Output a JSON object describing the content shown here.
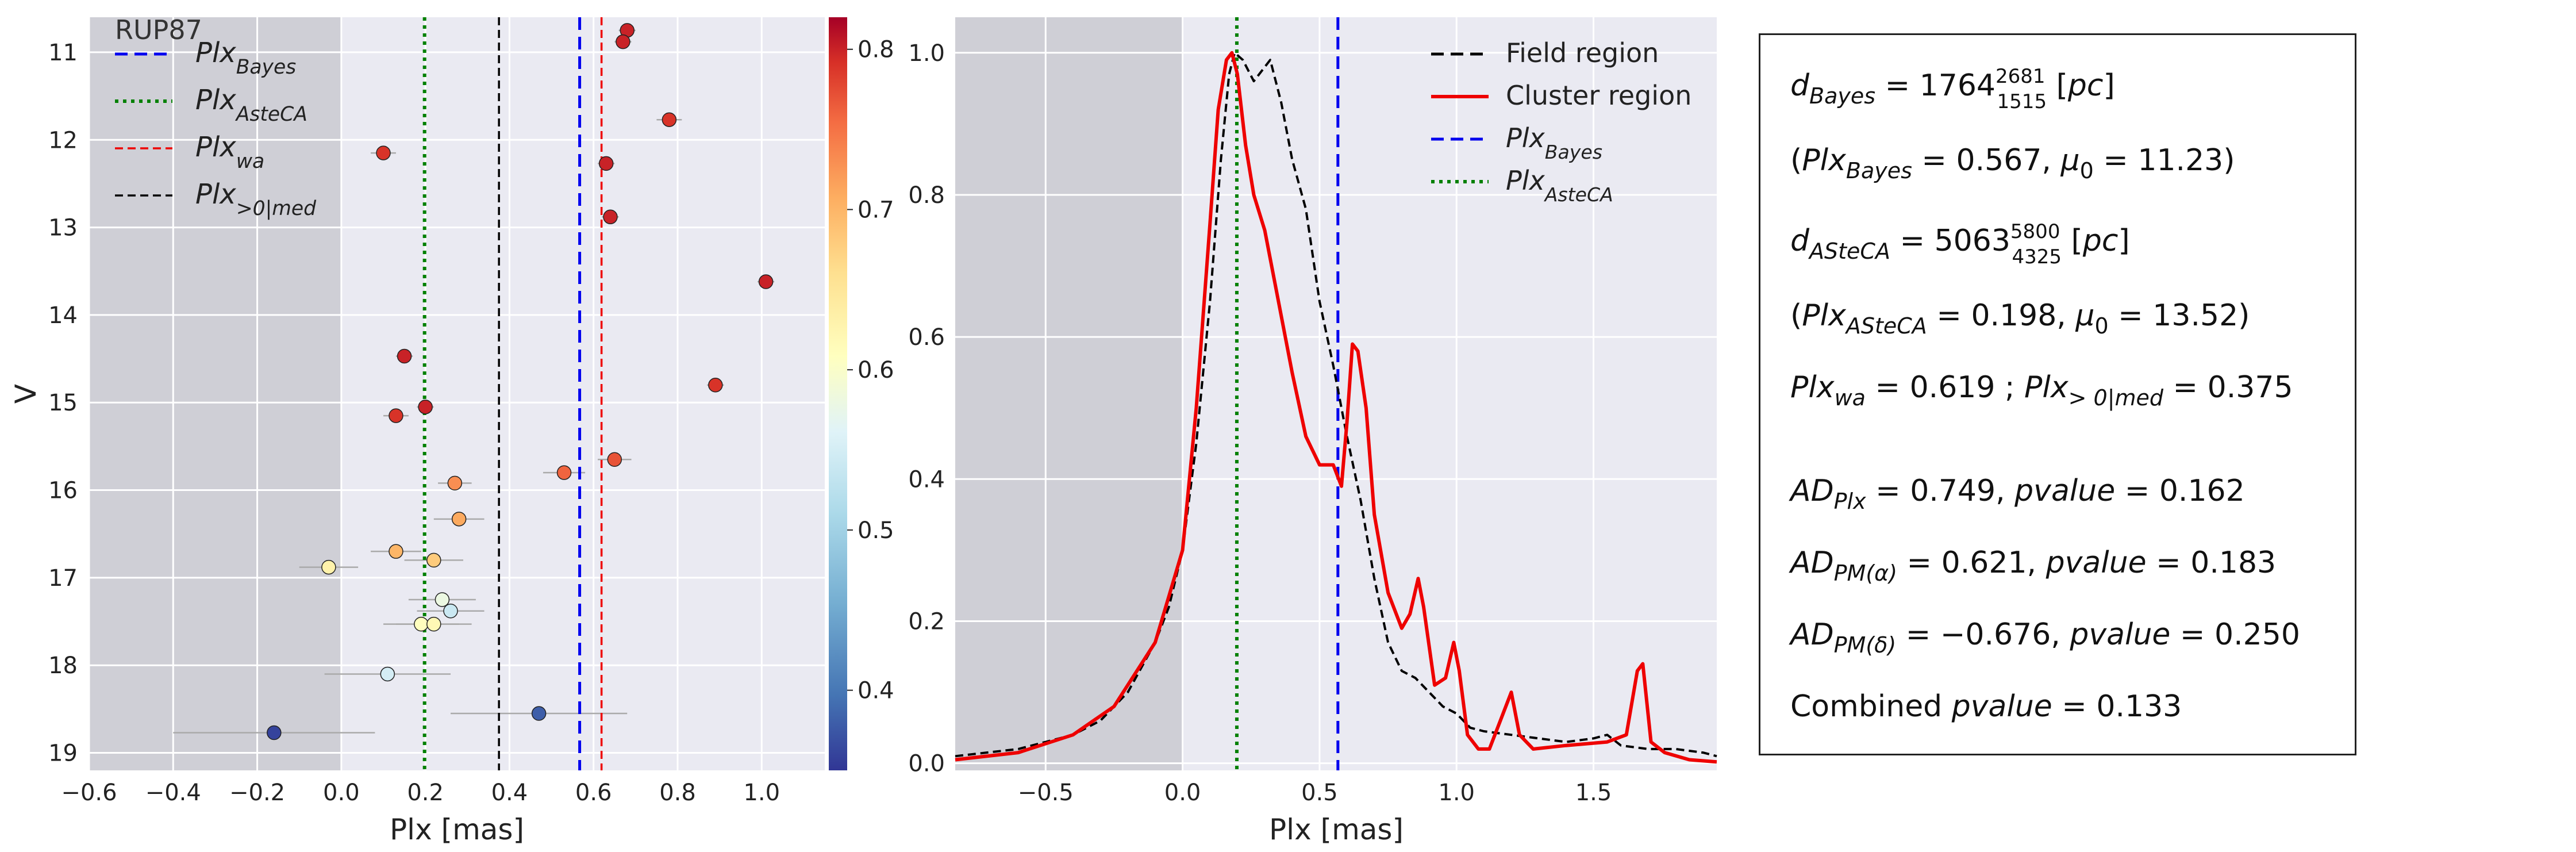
{
  "chart_data": [
    {
      "type": "scatter",
      "panel": "left",
      "cluster_label": "RUP87",
      "xlabel": "Plx [mas]",
      "ylabel": "V",
      "xlim": [
        -0.6,
        1.15
      ],
      "ylim": [
        19.2,
        10.6
      ],
      "y_inverted": true,
      "xticks": [
        "−0.6",
        "−0.4",
        "−0.2",
        "0.0",
        "0.2",
        "0.4",
        "0.6",
        "0.8",
        "1.0"
      ],
      "yticks": [
        "11",
        "12",
        "13",
        "14",
        "15",
        "16",
        "17",
        "18",
        "19"
      ],
      "grid": true,
      "shaded_region": [
        -0.6,
        0.0
      ],
      "colorbar": {
        "min": 0.35,
        "max": 0.82,
        "ticks": [
          "0.4",
          "0.5",
          "0.6",
          "0.7",
          "0.8"
        ],
        "colormap": "RdYlBu_r"
      },
      "vlines": [
        {
          "name": "Plx_Bayes",
          "x": 0.567,
          "color": "#0000ee",
          "style": "dashed"
        },
        {
          "name": "Plx_AsteCA",
          "x": 0.198,
          "color": "#008000",
          "style": "dotted"
        },
        {
          "name": "Plx_wa",
          "x": 0.619,
          "color": "#ee0000",
          "style": "dashed-thin"
        },
        {
          "name": "Plx_>0|med",
          "x": 0.375,
          "color": "#000000",
          "style": "dashed-thin"
        }
      ],
      "legend": [
        {
          "base": "Plx",
          "sub": "Bayes",
          "color": "#0000ee",
          "style": "dashed"
        },
        {
          "base": "Plx",
          "sub": "AsteCA",
          "color": "#008000",
          "style": "dotted"
        },
        {
          "base": "Plx",
          "sub": "wa",
          "color": "#ee0000",
          "style": "dashed-thin"
        },
        {
          "base": "Plx",
          "sub": ">0|med",
          "color": "#000000",
          "style": "dashed-thin"
        }
      ],
      "legend_position": "top-left",
      "points": [
        {
          "x": 0.68,
          "y": 10.75,
          "xerr": 0.02,
          "p": 0.8
        },
        {
          "x": 0.67,
          "y": 10.88,
          "xerr": 0.02,
          "p": 0.8
        },
        {
          "x": 0.78,
          "y": 11.77,
          "xerr": 0.03,
          "p": 0.79
        },
        {
          "x": 0.1,
          "y": 12.15,
          "xerr": 0.03,
          "p": 0.79
        },
        {
          "x": 0.63,
          "y": 12.27,
          "xerr": 0.02,
          "p": 0.8
        },
        {
          "x": 0.64,
          "y": 12.88,
          "xerr": 0.02,
          "p": 0.8
        },
        {
          "x": 1.01,
          "y": 13.62,
          "xerr": 0.02,
          "p": 0.8
        },
        {
          "x": 0.15,
          "y": 14.47,
          "xerr": 0.02,
          "p": 0.8
        },
        {
          "x": 0.89,
          "y": 14.8,
          "xerr": 0.02,
          "p": 0.79
        },
        {
          "x": 0.2,
          "y": 15.05,
          "xerr": 0.02,
          "p": 0.8
        },
        {
          "x": 0.13,
          "y": 15.15,
          "xerr": 0.03,
          "p": 0.79
        },
        {
          "x": 0.65,
          "y": 15.65,
          "xerr": 0.04,
          "p": 0.77
        },
        {
          "x": 0.53,
          "y": 15.8,
          "xerr": 0.05,
          "p": 0.76
        },
        {
          "x": 0.27,
          "y": 15.92,
          "xerr": 0.04,
          "p": 0.73
        },
        {
          "x": 0.28,
          "y": 16.33,
          "xerr": 0.06,
          "p": 0.71
        },
        {
          "x": 0.13,
          "y": 16.7,
          "xerr": 0.06,
          "p": 0.7
        },
        {
          "x": 0.22,
          "y": 16.8,
          "xerr": 0.07,
          "p": 0.68
        },
        {
          "x": -0.03,
          "y": 16.88,
          "xerr": 0.07,
          "p": 0.63
        },
        {
          "x": 0.24,
          "y": 17.25,
          "xerr": 0.08,
          "p": 0.58
        },
        {
          "x": 0.26,
          "y": 17.38,
          "xerr": 0.08,
          "p": 0.54
        },
        {
          "x": 0.19,
          "y": 17.53,
          "xerr": 0.09,
          "p": 0.61
        },
        {
          "x": 0.22,
          "y": 17.53,
          "xerr": 0.09,
          "p": 0.62
        },
        {
          "x": 0.11,
          "y": 18.1,
          "xerr": 0.15,
          "p": 0.55
        },
        {
          "x": 0.47,
          "y": 18.55,
          "xerr": 0.21,
          "p": 0.38
        },
        {
          "x": -0.16,
          "y": 18.77,
          "xerr": 0.24,
          "p": 0.36
        }
      ]
    },
    {
      "type": "line",
      "panel": "middle",
      "xlabel": "Plx [mas]",
      "xlim": [
        -0.83,
        1.95
      ],
      "ylim": [
        -0.01,
        1.05
      ],
      "xticks": [
        "−0.5",
        "0.0",
        "0.5",
        "1.0",
        "1.5"
      ],
      "yticks": [
        "0.0",
        "0.2",
        "0.4",
        "0.6",
        "0.8",
        "1.0"
      ],
      "grid": true,
      "shaded_region": [
        -0.83,
        0.0
      ],
      "legend_position": "top-right",
      "series": [
        {
          "name": "Field region",
          "color": "#000000",
          "style": "dashed",
          "points": [
            [
              -0.83,
              0.01
            ],
            [
              -0.6,
              0.02
            ],
            [
              -0.4,
              0.04
            ],
            [
              -0.3,
              0.06
            ],
            [
              -0.2,
              0.1
            ],
            [
              -0.1,
              0.17
            ],
            [
              -0.05,
              0.22
            ],
            [
              0.0,
              0.3
            ],
            [
              0.05,
              0.45
            ],
            [
              0.1,
              0.65
            ],
            [
              0.14,
              0.85
            ],
            [
              0.17,
              0.97
            ],
            [
              0.19,
              1.0
            ],
            [
              0.22,
              0.99
            ],
            [
              0.26,
              0.96
            ],
            [
              0.29,
              0.975
            ],
            [
              0.32,
              0.99
            ],
            [
              0.36,
              0.93
            ],
            [
              0.4,
              0.85
            ],
            [
              0.45,
              0.78
            ],
            [
              0.5,
              0.65
            ],
            [
              0.55,
              0.56
            ],
            [
              0.6,
              0.46
            ],
            [
              0.65,
              0.37
            ],
            [
              0.7,
              0.26
            ],
            [
              0.75,
              0.17
            ],
            [
              0.8,
              0.13
            ],
            [
              0.85,
              0.12
            ],
            [
              0.9,
              0.1
            ],
            [
              0.95,
              0.08
            ],
            [
              1.0,
              0.07
            ],
            [
              1.05,
              0.05
            ],
            [
              1.1,
              0.045
            ],
            [
              1.2,
              0.04
            ],
            [
              1.3,
              0.035
            ],
            [
              1.4,
              0.03
            ],
            [
              1.5,
              0.035
            ],
            [
              1.55,
              0.04
            ],
            [
              1.6,
              0.025
            ],
            [
              1.7,
              0.02
            ],
            [
              1.8,
              0.02
            ],
            [
              1.9,
              0.015
            ],
            [
              1.95,
              0.01
            ]
          ]
        },
        {
          "name": "Cluster region",
          "color": "#ee0000",
          "style": "solid",
          "points": [
            [
              -0.83,
              0.005
            ],
            [
              -0.6,
              0.015
            ],
            [
              -0.4,
              0.04
            ],
            [
              -0.25,
              0.08
            ],
            [
              -0.1,
              0.17
            ],
            [
              0.0,
              0.3
            ],
            [
              0.05,
              0.5
            ],
            [
              0.1,
              0.76
            ],
            [
              0.13,
              0.92
            ],
            [
              0.16,
              0.99
            ],
            [
              0.18,
              1.0
            ],
            [
              0.2,
              0.97
            ],
            [
              0.23,
              0.87
            ],
            [
              0.26,
              0.8
            ],
            [
              0.3,
              0.75
            ],
            [
              0.35,
              0.65
            ],
            [
              0.4,
              0.55
            ],
            [
              0.45,
              0.46
            ],
            [
              0.5,
              0.42
            ],
            [
              0.55,
              0.42
            ],
            [
              0.58,
              0.39
            ],
            [
              0.6,
              0.48
            ],
            [
              0.62,
              0.59
            ],
            [
              0.64,
              0.58
            ],
            [
              0.67,
              0.5
            ],
            [
              0.7,
              0.35
            ],
            [
              0.75,
              0.24
            ],
            [
              0.8,
              0.19
            ],
            [
              0.83,
              0.21
            ],
            [
              0.86,
              0.26
            ],
            [
              0.88,
              0.22
            ],
            [
              0.92,
              0.11
            ],
            [
              0.96,
              0.12
            ],
            [
              0.99,
              0.17
            ],
            [
              1.01,
              0.13
            ],
            [
              1.04,
              0.04
            ],
            [
              1.08,
              0.02
            ],
            [
              1.12,
              0.02
            ],
            [
              1.16,
              0.06
            ],
            [
              1.2,
              0.1
            ],
            [
              1.23,
              0.04
            ],
            [
              1.28,
              0.02
            ],
            [
              1.4,
              0.025
            ],
            [
              1.55,
              0.03
            ],
            [
              1.62,
              0.04
            ],
            [
              1.66,
              0.13
            ],
            [
              1.68,
              0.14
            ],
            [
              1.71,
              0.03
            ],
            [
              1.76,
              0.015
            ],
            [
              1.85,
              0.005
            ],
            [
              1.95,
              0.002
            ]
          ]
        }
      ],
      "vlines": [
        {
          "name": "Plx_Bayes",
          "x": 0.567,
          "color": "#0000ee",
          "style": "dashed"
        },
        {
          "name": "Plx_AsteCA",
          "x": 0.198,
          "color": "#008000",
          "style": "dotted"
        }
      ],
      "legend": [
        {
          "text": "Field region",
          "color": "#000000",
          "style": "dashed"
        },
        {
          "text": "Cluster region",
          "color": "#ee0000",
          "style": "solid"
        },
        {
          "base": "Plx",
          "sub": "Bayes",
          "color": "#0000ee",
          "style": "dashed"
        },
        {
          "base": "Plx",
          "sub": "AsteCA",
          "color": "#008000",
          "style": "dotted"
        }
      ]
    }
  ],
  "stats_box": {
    "lines": [
      {
        "parts": [
          {
            "t": "d",
            "i": true
          },
          {
            "t": "Bayes",
            "i": true,
            "sub": true
          },
          {
            "t": " = 1764"
          },
          {
            "t": "2681",
            "sup": true
          },
          {
            "t": "1515",
            "subnum": true
          },
          {
            "t": " ["
          },
          {
            "t": "pc",
            "i": true
          },
          {
            "t": "]"
          }
        ]
      },
      {
        "parts": [
          {
            "t": "("
          },
          {
            "t": "Plx",
            "i": true
          },
          {
            "t": "Bayes",
            "i": true,
            "sub": true
          },
          {
            "t": " = 0.567,  "
          },
          {
            "t": "μ",
            "i": true
          },
          {
            "t": "0",
            "sub": true
          },
          {
            "t": " = 11.23)"
          }
        ]
      },
      {
        "parts": [
          {
            "t": "d",
            "i": true
          },
          {
            "t": "ASteCA",
            "i": true,
            "sub": true
          },
          {
            "t": " = 5063"
          },
          {
            "t": "5800",
            "sup": true
          },
          {
            "t": "4325",
            "subnum": true
          },
          {
            "t": " ["
          },
          {
            "t": "pc",
            "i": true
          },
          {
            "t": "]"
          }
        ]
      },
      {
        "parts": [
          {
            "t": "("
          },
          {
            "t": "Plx",
            "i": true
          },
          {
            "t": "ASteCA",
            "i": true,
            "sub": true
          },
          {
            "t": " = 0.198,  "
          },
          {
            "t": "μ",
            "i": true
          },
          {
            "t": "0",
            "sub": true
          },
          {
            "t": " = 13.52)"
          }
        ]
      },
      {
        "parts": [
          {
            "t": "Plx",
            "i": true
          },
          {
            "t": "wa",
            "i": true,
            "sub": true
          },
          {
            "t": " = 0.619 ; "
          },
          {
            "t": "Plx",
            "i": true
          },
          {
            "t": "> 0|med",
            "i": true,
            "sub": true
          },
          {
            "t": " = 0.375"
          }
        ]
      },
      {
        "parts": [
          {
            "t": "AD",
            "i": true
          },
          {
            "t": "Plx",
            "i": true,
            "sub": true
          },
          {
            "t": " = 0.749,  "
          },
          {
            "t": "pvalue",
            "i": true
          },
          {
            "t": " = 0.162"
          }
        ]
      },
      {
        "parts": [
          {
            "t": "AD",
            "i": true
          },
          {
            "t": "PM(α)",
            "i": true,
            "sub": true
          },
          {
            "t": " = 0.621,  "
          },
          {
            "t": "pvalue",
            "i": true
          },
          {
            "t": " = 0.183"
          }
        ]
      },
      {
        "parts": [
          {
            "t": "AD",
            "i": true
          },
          {
            "t": "PM(δ)",
            "i": true,
            "sub": true
          },
          {
            "t": " = −0.676,  "
          },
          {
            "t": "pvalue",
            "i": true
          },
          {
            "t": " = 0.250"
          }
        ]
      },
      {
        "parts": [
          {
            "t": "Combined "
          },
          {
            "t": "pvalue",
            "i": true
          },
          {
            "t": " = 0.133"
          }
        ]
      }
    ]
  }
}
